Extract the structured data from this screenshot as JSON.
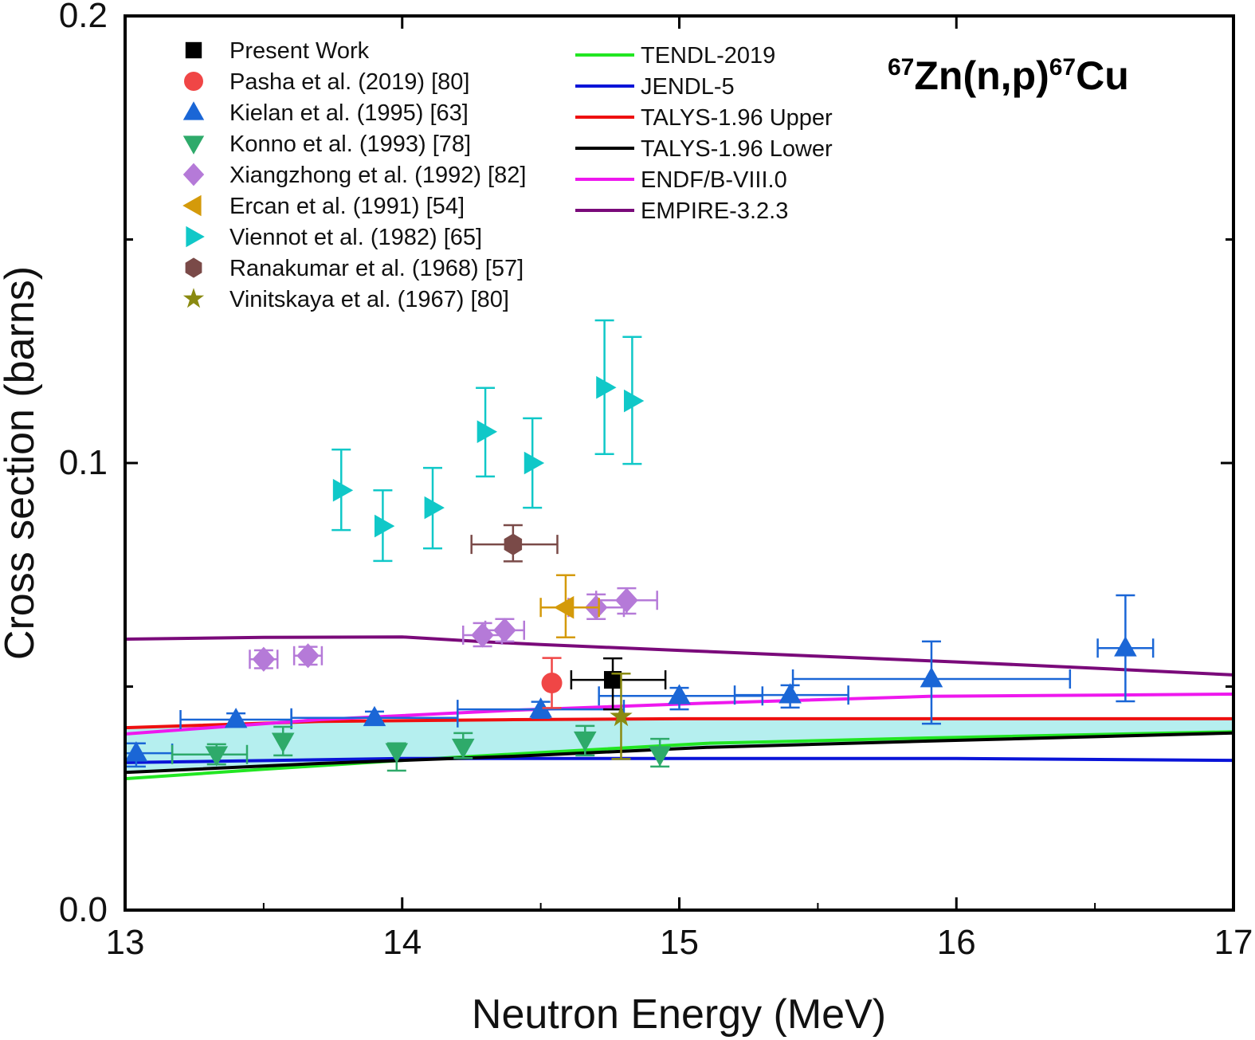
{
  "chart_data": {
    "type": "scatter",
    "title": "67Zn(n,p)67Cu",
    "title_parts": {
      "mass_target": "67",
      "reaction": "Zn(n,p)",
      "mass_product": "67",
      "product": "Cu"
    },
    "xlabel": "Neutron Energy (MeV)",
    "ylabel": "Cross section (barns)",
    "xlim": [
      13,
      17
    ],
    "ylim": [
      0.0,
      0.2
    ],
    "x_ticks": [
      13,
      14,
      15,
      16,
      17
    ],
    "x_tick_labels": [
      "13",
      "14",
      "15",
      "16",
      "17"
    ],
    "y_ticks": [
      0.0,
      0.1,
      0.2
    ],
    "y_tick_labels": [
      "0.0",
      "0.1",
      "0.2"
    ],
    "y_minor_ticks": [
      0.05,
      0.15
    ],
    "x_minor_ticks": [
      13.5,
      14.5,
      15.5,
      16.5
    ],
    "grid": false,
    "legend_placement": "top-left",
    "shaded_band": {
      "between": [
        "TALYS-1.96 Upper",
        "TALYS-1.96 Lower"
      ],
      "color": "#a8ecec"
    },
    "experimental": [
      {
        "name": "Present Work",
        "marker": "square",
        "color": "#000000",
        "points": [
          {
            "x": 14.76,
            "y": 0.0515,
            "xerr": [
              14.61,
              14.95
            ],
            "yerr": [
              0.0449,
              0.0563
            ]
          }
        ]
      },
      {
        "name": "Pasha et al. (2019) [80]",
        "marker": "circle",
        "color": "#f04646",
        "points": [
          {
            "x": 14.54,
            "y": 0.0508,
            "yerr": [
              0.0452,
              0.0564
            ]
          }
        ]
      },
      {
        "name": "Kielan et al. (1995) [63]",
        "marker": "triangle-up",
        "color": "#1a66d6",
        "points": [
          {
            "x": 13.04,
            "y": 0.0351,
            "xerr": [
              13.0,
              13.17
            ],
            "yerr": [
              0.0321,
              0.0373
            ]
          },
          {
            "x": 13.4,
            "y": 0.0426,
            "xerr": [
              13.2,
              13.6
            ],
            "yerr": [
              0.041,
              0.044
            ]
          },
          {
            "x": 13.9,
            "y": 0.043,
            "xerr": [
              13.6,
              14.2
            ],
            "yerr": [
              0.0414,
              0.0444
            ]
          },
          {
            "x": 14.5,
            "y": 0.0449,
            "xerr": [
              14.2,
              14.8
            ],
            "yerr": [
              0.043,
              0.0466
            ]
          },
          {
            "x": 15.0,
            "y": 0.0479,
            "xerr": [
              14.71,
              15.3
            ],
            "yerr": [
              0.0449,
              0.0497
            ]
          },
          {
            "x": 15.4,
            "y": 0.0481,
            "xerr": [
              15.2,
              15.61
            ],
            "yerr": [
              0.0453,
              0.0503
            ]
          },
          {
            "x": 15.91,
            "y": 0.0517,
            "xerr": [
              15.41,
              16.41
            ],
            "yerr": [
              0.0417,
              0.0601
            ]
          },
          {
            "x": 16.61,
            "y": 0.0586,
            "xerr": [
              16.51,
              16.71
            ],
            "yerr": [
              0.0467,
              0.0704
            ]
          }
        ]
      },
      {
        "name": "Konno et al. (1993) [78]",
        "marker": "triangle-down",
        "color": "#2eaa6a",
        "points": [
          {
            "x": 13.33,
            "y": 0.0348,
            "xerr": [
              13.17,
              13.44
            ],
            "yerr": [
              0.0326,
              0.0371
            ]
          },
          {
            "x": 13.57,
            "y": 0.0378,
            "yerr": [
              0.0346,
              0.041
            ]
          },
          {
            "x": 13.98,
            "y": 0.0355,
            "yerr": [
              0.0312,
              0.0373
            ]
          },
          {
            "x": 14.22,
            "y": 0.0365,
            "yerr": [
              0.034,
              0.0396
            ]
          },
          {
            "x": 14.66,
            "y": 0.0381,
            "yerr": [
              0.0346,
              0.0412
            ]
          },
          {
            "x": 14.93,
            "y": 0.0348,
            "yerr": [
              0.0321,
              0.0383
            ]
          }
        ]
      },
      {
        "name": "Xiangzhong et al. (1992) [82]",
        "marker": "diamond",
        "color": "#b57ad8",
        "points": [
          {
            "x": 13.5,
            "y": 0.0561,
            "xerr": [
              13.45,
              13.55
            ],
            "yerr": [
              0.0541,
              0.0581
            ]
          },
          {
            "x": 13.66,
            "y": 0.0569,
            "xerr": [
              13.61,
              13.71
            ],
            "yerr": [
              0.0549,
              0.0589
            ]
          },
          {
            "x": 14.29,
            "y": 0.0615,
            "xerr": [
              14.22,
              14.36
            ],
            "yerr": [
              0.059,
              0.0642
            ]
          },
          {
            "x": 14.37,
            "y": 0.0626,
            "xerr": [
              14.3,
              14.44
            ],
            "yerr": [
              0.0601,
              0.0651
            ]
          },
          {
            "x": 14.7,
            "y": 0.0677,
            "xerr": [
              14.6,
              14.8
            ],
            "yerr": [
              0.0651,
              0.0706
            ]
          },
          {
            "x": 14.81,
            "y": 0.0693,
            "xerr": [
              14.7,
              14.92
            ],
            "yerr": [
              0.0663,
              0.072
            ]
          }
        ]
      },
      {
        "name": "Ercan et al. (1991) [54]",
        "marker": "triangle-left",
        "color": "#d49a0a",
        "points": [
          {
            "x": 14.59,
            "y": 0.0677,
            "xerr": [
              14.5,
              14.71
            ],
            "yerr": [
              0.061,
              0.0749
            ]
          }
        ]
      },
      {
        "name": "Viennot et al. (1982) [65]",
        "marker": "triangle-right",
        "color": "#10c8c8",
        "points": [
          {
            "x": 13.78,
            "y": 0.0939,
            "yerr": [
              0.085,
              0.103
            ]
          },
          {
            "x": 13.93,
            "y": 0.0859,
            "yerr": [
              0.0781,
              0.0939
            ]
          },
          {
            "x": 14.11,
            "y": 0.09,
            "yerr": [
              0.0809,
              0.0989
            ]
          },
          {
            "x": 14.3,
            "y": 0.107,
            "yerr": [
              0.097,
              0.1168
            ]
          },
          {
            "x": 14.47,
            "y": 0.1,
            "yerr": [
              0.09,
              0.11
            ]
          },
          {
            "x": 14.73,
            "y": 0.1169,
            "yerr": [
              0.102,
              0.1319
            ]
          },
          {
            "x": 14.83,
            "y": 0.1139,
            "yerr": [
              0.0998,
              0.1282
            ]
          }
        ]
      },
      {
        "name": "Ranakumar et al. (1968) [57]",
        "marker": "hexagon",
        "color": "#7a4a48",
        "points": [
          {
            "x": 14.4,
            "y": 0.0818,
            "xerr": [
              14.25,
              14.56
            ],
            "yerr": [
              0.078,
              0.0861
            ]
          }
        ]
      },
      {
        "name": "Vinitskaya et al. (1967) [80]",
        "marker": "star",
        "color": "#8a8a10",
        "points": [
          {
            "x": 14.79,
            "y": 0.0433,
            "yerr": [
              0.0338,
              0.0529
            ]
          }
        ]
      }
    ],
    "evaluations": [
      {
        "name": "TENDL-2019",
        "color": "#22e622",
        "x": [
          13.0,
          13.5,
          14.0,
          14.4,
          15.1,
          15.9,
          17.0
        ],
        "y": [
          0.0294,
          0.0315,
          0.0335,
          0.0349,
          0.0373,
          0.0385,
          0.0399
        ]
      },
      {
        "name": "JENDL-5",
        "color": "#0a14d8",
        "x": [
          13.0,
          14.0,
          15.0,
          16.0,
          17.0
        ],
        "y": [
          0.033,
          0.0339,
          0.0339,
          0.0339,
          0.0335
        ]
      },
      {
        "name": "TALYS-1.96 Upper",
        "color": "#ee1010",
        "x": [
          13.0,
          13.7,
          14.4,
          15.0,
          17.0
        ],
        "y": [
          0.0408,
          0.0422,
          0.0426,
          0.0428,
          0.0428
        ]
      },
      {
        "name": "TALYS-1.96 Lower",
        "color": "#000000",
        "x": [
          13.0,
          13.7,
          14.4,
          15.1,
          15.9,
          17.0
        ],
        "y": [
          0.0308,
          0.0328,
          0.0344,
          0.0364,
          0.0378,
          0.0396
        ]
      },
      {
        "name": "ENDF/B-VIII.0",
        "color": "#ee18ee",
        "x": [
          13.0,
          13.7,
          14.4,
          15.1,
          15.9,
          17.0
        ],
        "y": [
          0.0394,
          0.0426,
          0.0447,
          0.0463,
          0.0478,
          0.0483
        ]
      },
      {
        "name": "EMPIRE-3.2.3",
        "color": "#7a0a7a",
        "x": [
          13.0,
          13.5,
          14.0,
          14.3,
          14.5,
          15.0,
          15.5,
          16.0,
          16.5,
          17.0
        ],
        "y": [
          0.0606,
          0.061,
          0.0611,
          0.06,
          0.0594,
          0.0581,
          0.0568,
          0.0555,
          0.0541,
          0.0526
        ]
      }
    ]
  }
}
